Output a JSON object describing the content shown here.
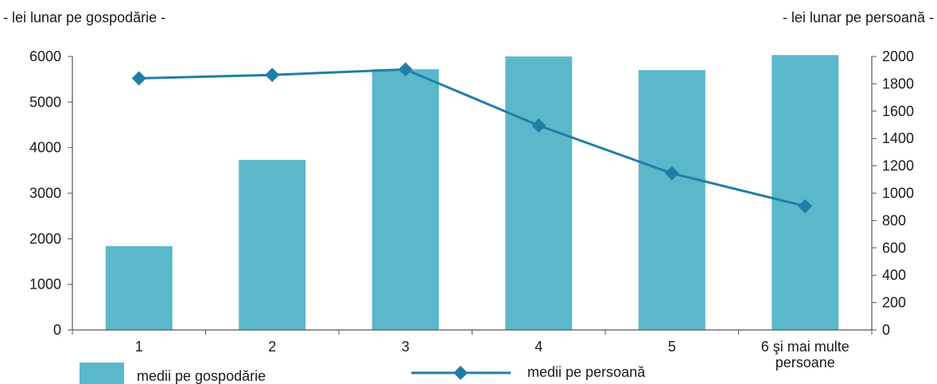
{
  "chart_data": {
    "type": "bar",
    "title": "",
    "ylabel_left": "- lei lunar pe gospodărie -",
    "ylabel_right": "- lei lunar pe persoană -",
    "categories": [
      "1",
      "2",
      "3",
      "4",
      "5",
      "6 şi mai multe persoane"
    ],
    "category_lines": [
      [
        "1"
      ],
      [
        "2"
      ],
      [
        "3"
      ],
      [
        "4"
      ],
      [
        "5"
      ],
      [
        "6 şi mai multe",
        "persoane"
      ]
    ],
    "y_left": {
      "min": 0,
      "max": 6000,
      "ticks": [
        "0",
        "1000",
        "2000",
        "3000",
        "4000",
        "5000",
        "6000"
      ]
    },
    "y_right": {
      "min": 0,
      "max": 2000,
      "ticks": [
        "0",
        "200",
        "400",
        "600",
        "800",
        "1000",
        "1200",
        "1400",
        "1600",
        "1800",
        "2000"
      ]
    },
    "series": [
      {
        "name": "medii pe gospodărie",
        "type": "bar",
        "axis": "left",
        "values": [
          1840,
          3730,
          5720,
          6000,
          5700,
          6030
        ],
        "color": "#5bb8cb"
      },
      {
        "name": "medii pe persoană",
        "type": "line",
        "axis": "right",
        "marker": "diamond",
        "values": [
          1840,
          1865,
          1905,
          1495,
          1145,
          905
        ],
        "color": "#1f7ea8"
      }
    ],
    "grid": false,
    "legend": "bottom"
  }
}
